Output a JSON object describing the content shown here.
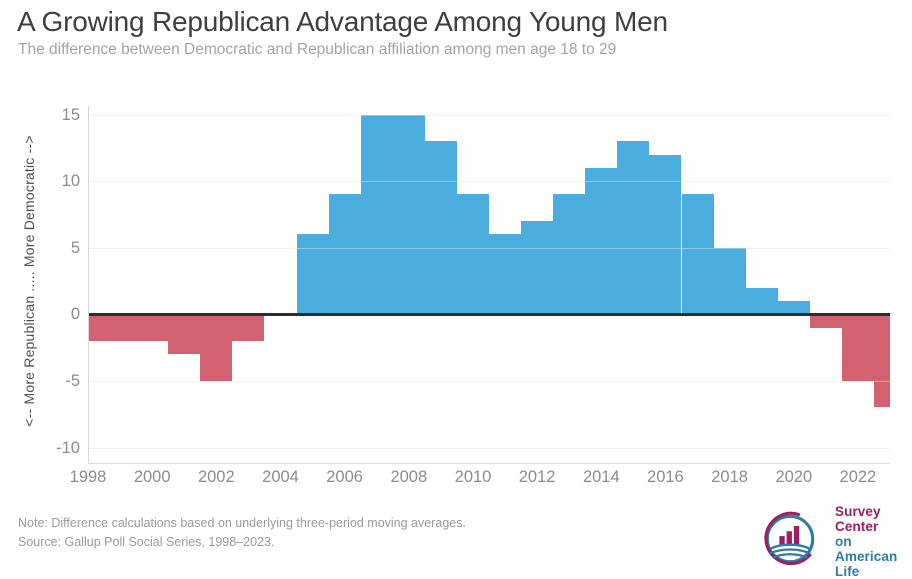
{
  "header": {
    "title": "A Growing Republican Advantage Among Young Men",
    "subtitle": "The difference between Democratic and Republican affiliation among men age 18 to 29"
  },
  "chart_data": {
    "type": "bar",
    "title": "A Growing Republican Advantage Among Young Men",
    "subtitle": "The difference between Democratic and Republican affiliation among men age 18 to 29",
    "categories": [
      1998,
      1999,
      2000,
      2001,
      2002,
      2003,
      2004,
      2005,
      2006,
      2007,
      2008,
      2009,
      2010,
      2011,
      2012,
      2013,
      2014,
      2015,
      2016,
      2017,
      2018,
      2019,
      2020,
      2021,
      2022,
      2023
    ],
    "values": [
      -2,
      -2,
      -2,
      -3,
      -5,
      -2,
      0,
      6,
      9,
      15,
      15,
      13,
      9,
      6,
      7,
      9,
      11,
      13,
      12,
      9,
      5,
      2,
      1,
      -1,
      -5,
      -7
    ],
    "xlabel": "",
    "ylabel": "<-- More Republican ..... More Democratic -->",
    "xlim": [
      1998,
      2023
    ],
    "ylim": [
      -11.2,
      15.6
    ],
    "y_ticks": [
      15,
      10,
      5,
      0,
      -5,
      -10
    ],
    "x_ticks": [
      1998,
      2000,
      2002,
      2004,
      2006,
      2008,
      2010,
      2012,
      2014,
      2016,
      2018,
      2020,
      2022
    ],
    "bar_width_years": 1,
    "grid": true,
    "legend": "none",
    "colors": {
      "positive": "#4badde",
      "negative": "#d26171",
      "zero_line": "#2d2d2d",
      "gridline": "#ececec",
      "axis_line": "#d9d9d9",
      "tick_label": "#8c8c8c",
      "axis_title": "#4f4f4f"
    }
  },
  "footer": {
    "note": "Note: Difference calculations based on underlying three-period moving averages.",
    "source": "Source: Gallup Poll Social Series, 1998–2023.",
    "logo": {
      "icon": "bar-chart-circle-logo",
      "text_line1": "Survey Center",
      "text_line2": "on American Life",
      "color_maroon": "#9b1f63",
      "color_blue": "#2e7ca3"
    }
  }
}
